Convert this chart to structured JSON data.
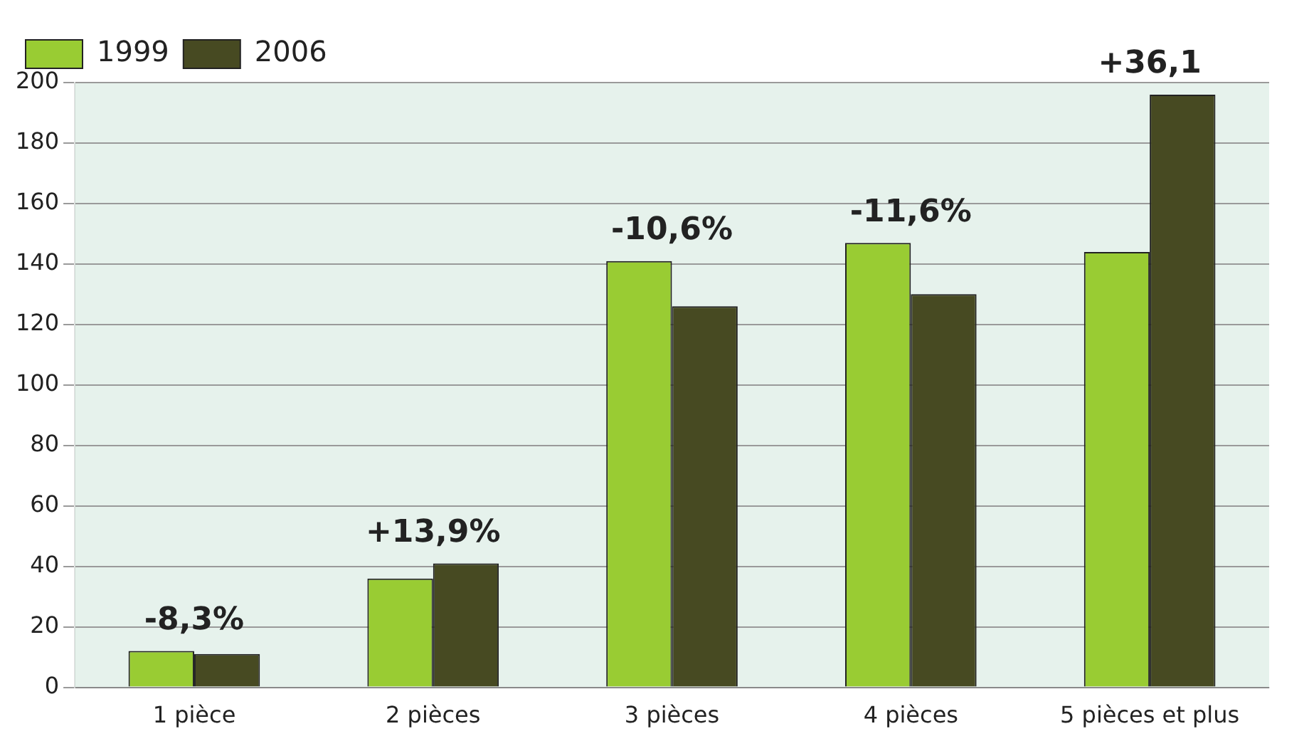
{
  "chart_data": {
    "type": "bar",
    "categories": [
      "1 pièce",
      "2 pièces",
      "3 pièces",
      "4 pièces",
      "5 pièces et plus"
    ],
    "series": [
      {
        "name": "1999",
        "color": "#99cc33",
        "values": [
          12,
          36,
          141,
          147,
          144
        ]
      },
      {
        "name": "2006",
        "color": "#474a22",
        "values": [
          11,
          41,
          126,
          130,
          196
        ]
      }
    ],
    "ylim": [
      0,
      200
    ],
    "yticks": [
      0,
      20,
      40,
      60,
      80,
      100,
      120,
      140,
      160,
      180,
      200
    ],
    "grid": "y",
    "legend": "top left",
    "annotations": [
      {
        "text": "-8,3%",
        "x": "1 pièce",
        "y": 12
      },
      {
        "text": "+13,9%",
        "x": "2 pièces",
        "y": 41
      },
      {
        "text": "-10,6%",
        "x": "3 pièces",
        "y": 141
      },
      {
        "text": "-11,6%",
        "x": "4 pièces",
        "y": 147
      },
      {
        "text": "+36,1",
        "x": "5 pièces et plus",
        "y": 196
      }
    ]
  }
}
